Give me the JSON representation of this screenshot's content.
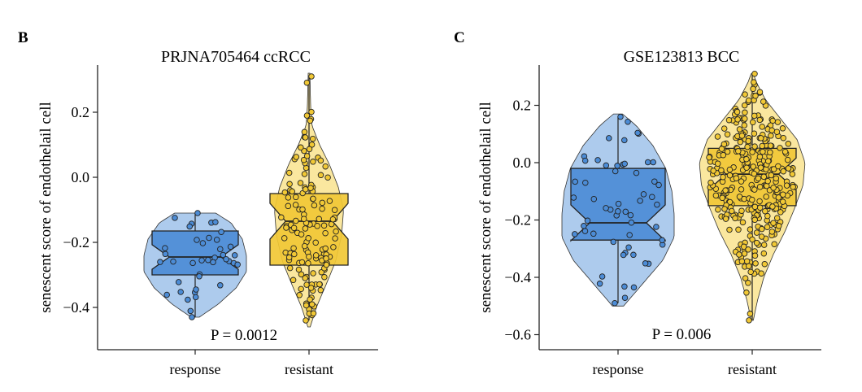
{
  "colors": {
    "response_box": "#4c8cd6",
    "response_violin": "#a9c8ec",
    "resistant_box": "#f1c835",
    "resistant_violin": "#fae69a"
  },
  "chart_data": [
    {
      "panel_label": "B",
      "type": "violin-box-jitter",
      "title": "PRJNA705464 ccRCC",
      "ylabel": "senescent score of endothelail cell",
      "categories": [
        "response",
        "resistant"
      ],
      "ylim": [
        -0.46,
        0.32
      ],
      "yticks": [
        0.2,
        0.0,
        -0.2,
        -0.4
      ],
      "yticklabels": [
        "0.2",
        "0.0",
        "−0.2",
        "−0.4"
      ],
      "annotation": "P = 0.0012",
      "series": [
        {
          "category": "response",
          "min": -0.43,
          "q1": -0.3,
          "median": -0.245,
          "q3": -0.165,
          "max": -0.11,
          "violin_halfwidth": [
            [
              -0.43,
              0.08
            ],
            [
              -0.39,
              0.45
            ],
            [
              -0.34,
              0.8
            ],
            [
              -0.29,
              1.0
            ],
            [
              -0.24,
              1.0
            ],
            [
              -0.19,
              0.92
            ],
            [
              -0.14,
              0.7
            ],
            [
              -0.11,
              0.4
            ]
          ],
          "n_points": 38
        },
        {
          "category": "resistant",
          "min": -0.44,
          "q1": -0.27,
          "median": -0.135,
          "q3": -0.05,
          "max": 0.31,
          "violin_halfwidth": [
            [
              -0.46,
              0.03
            ],
            [
              -0.4,
              0.18
            ],
            [
              -0.33,
              0.42
            ],
            [
              -0.26,
              0.65
            ],
            [
              -0.18,
              0.8
            ],
            [
              -0.1,
              0.85
            ],
            [
              -0.03,
              0.72
            ],
            [
              0.04,
              0.5
            ],
            [
              0.1,
              0.26
            ],
            [
              0.16,
              0.07
            ],
            [
              0.22,
              0.04
            ],
            [
              0.32,
              0.02
            ]
          ],
          "n_points": 140
        }
      ]
    },
    {
      "panel_label": "C",
      "type": "violin-box-jitter",
      "title": "GSE123813 BCC",
      "ylabel": "senescent score of endothelail cell",
      "categories": [
        "response",
        "resistant"
      ],
      "ylim": [
        -0.62,
        0.31
      ],
      "yticks": [
        0.2,
        0.0,
        -0.2,
        -0.4,
        -0.6
      ],
      "yticklabels": [
        "0.2",
        "0.0",
        "−0.2",
        "−0.4",
        "−0.6"
      ],
      "annotation": "P = 0.006",
      "series": [
        {
          "category": "response",
          "min": -0.49,
          "q1": -0.27,
          "median": -0.21,
          "q3": -0.02,
          "max": 0.16,
          "violin_halfwidth": [
            [
              -0.5,
              0.1
            ],
            [
              -0.42,
              0.45
            ],
            [
              -0.34,
              0.8
            ],
            [
              -0.26,
              1.0
            ],
            [
              -0.18,
              1.0
            ],
            [
              -0.1,
              0.96
            ],
            [
              -0.02,
              0.85
            ],
            [
              0.06,
              0.62
            ],
            [
              0.13,
              0.32
            ],
            [
              0.17,
              0.08
            ]
          ],
          "n_points": 55
        },
        {
          "category": "resistant",
          "min": -0.55,
          "q1": -0.15,
          "median": -0.04,
          "q3": 0.05,
          "max": 0.31,
          "violin_halfwidth": [
            [
              -0.55,
              0.02
            ],
            [
              -0.48,
              0.1
            ],
            [
              -0.4,
              0.22
            ],
            [
              -0.32,
              0.4
            ],
            [
              -0.24,
              0.62
            ],
            [
              -0.16,
              0.8
            ],
            [
              -0.08,
              0.96
            ],
            [
              0.0,
              1.0
            ],
            [
              0.08,
              0.85
            ],
            [
              0.15,
              0.55
            ],
            [
              0.22,
              0.25
            ],
            [
              0.28,
              0.08
            ],
            [
              0.31,
              0.02
            ]
          ],
          "n_points": 330
        }
      ]
    }
  ]
}
